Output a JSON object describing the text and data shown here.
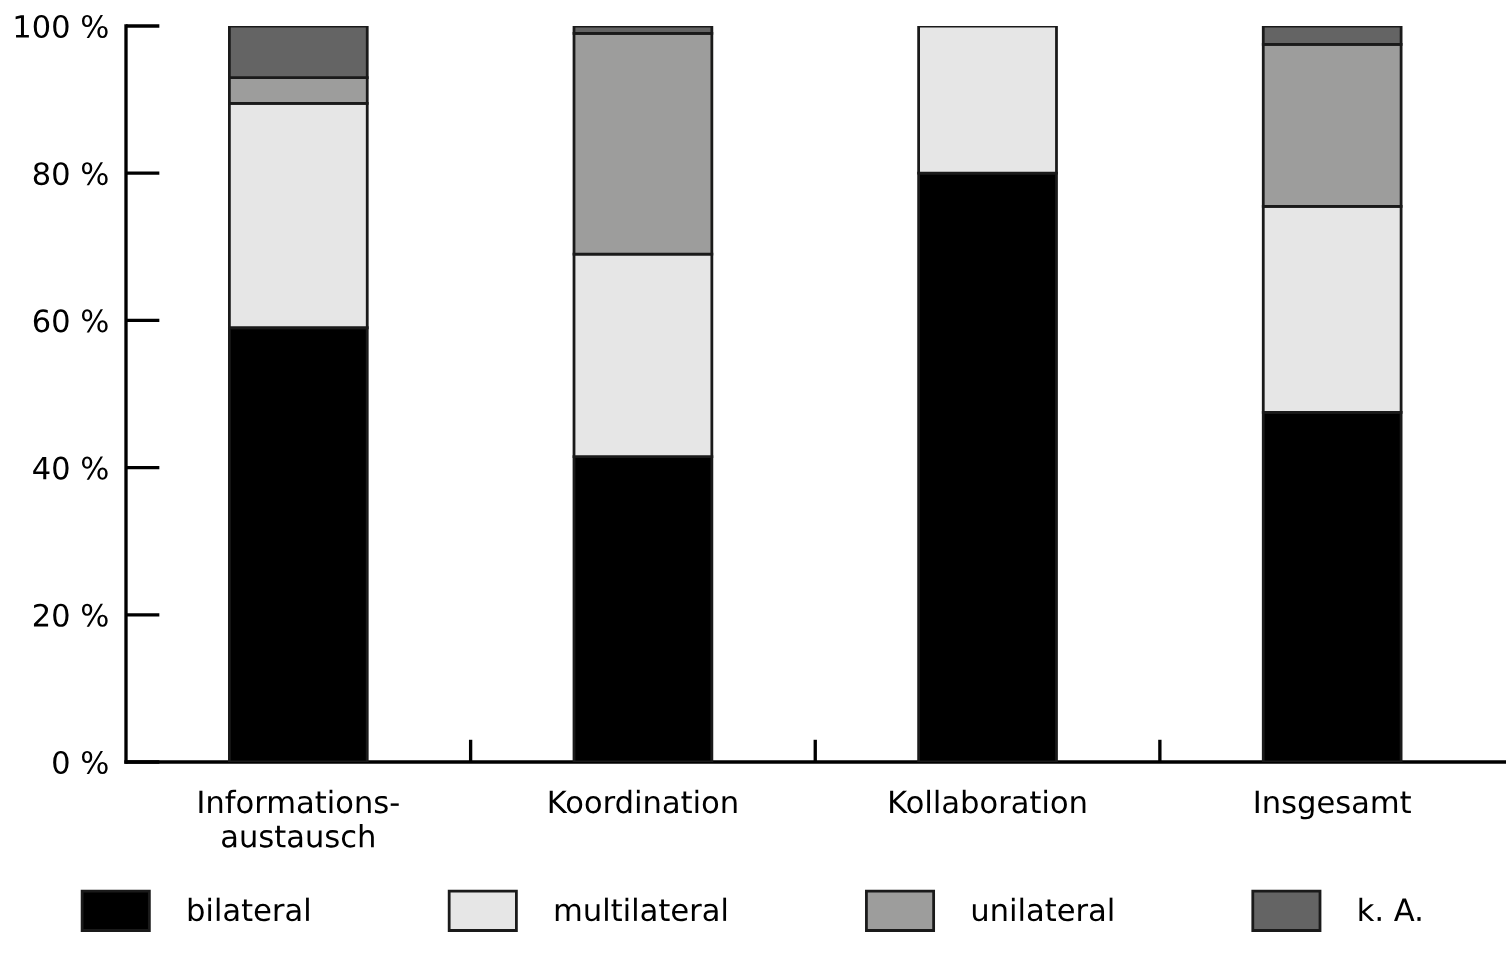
{
  "chart_data": {
    "type": "bar",
    "stacked": true,
    "categories": [
      "Informations-\naustausch",
      "Koordination",
      "Kollaboration",
      "Insgesamt"
    ],
    "series": [
      {
        "name": "bilateral",
        "color": "#000000",
        "values": [
          59,
          41.5,
          80,
          47.5
        ]
      },
      {
        "name": "multilateral",
        "color": "#e6e6e6",
        "values": [
          30.5,
          27.5,
          20,
          28
        ]
      },
      {
        "name": "unilateral",
        "color": "#9d9d9c",
        "values": [
          3.5,
          30,
          null,
          22
        ]
      },
      {
        "name": "k. A.",
        "color": "#646464",
        "values": [
          7,
          1,
          null,
          2.5
        ]
      }
    ],
    "ylim": [
      0,
      100
    ],
    "yticks": [
      {
        "value": 0,
        "label": "0 %"
      },
      {
        "value": 20,
        "label": "20 %"
      },
      {
        "value": 40,
        "label": "40 %"
      },
      {
        "value": 60,
        "label": "60 %"
      },
      {
        "value": 80,
        "label": "80 %"
      },
      {
        "value": 100,
        "label": "100 %"
      }
    ],
    "grid": false,
    "legend": "bottom"
  }
}
